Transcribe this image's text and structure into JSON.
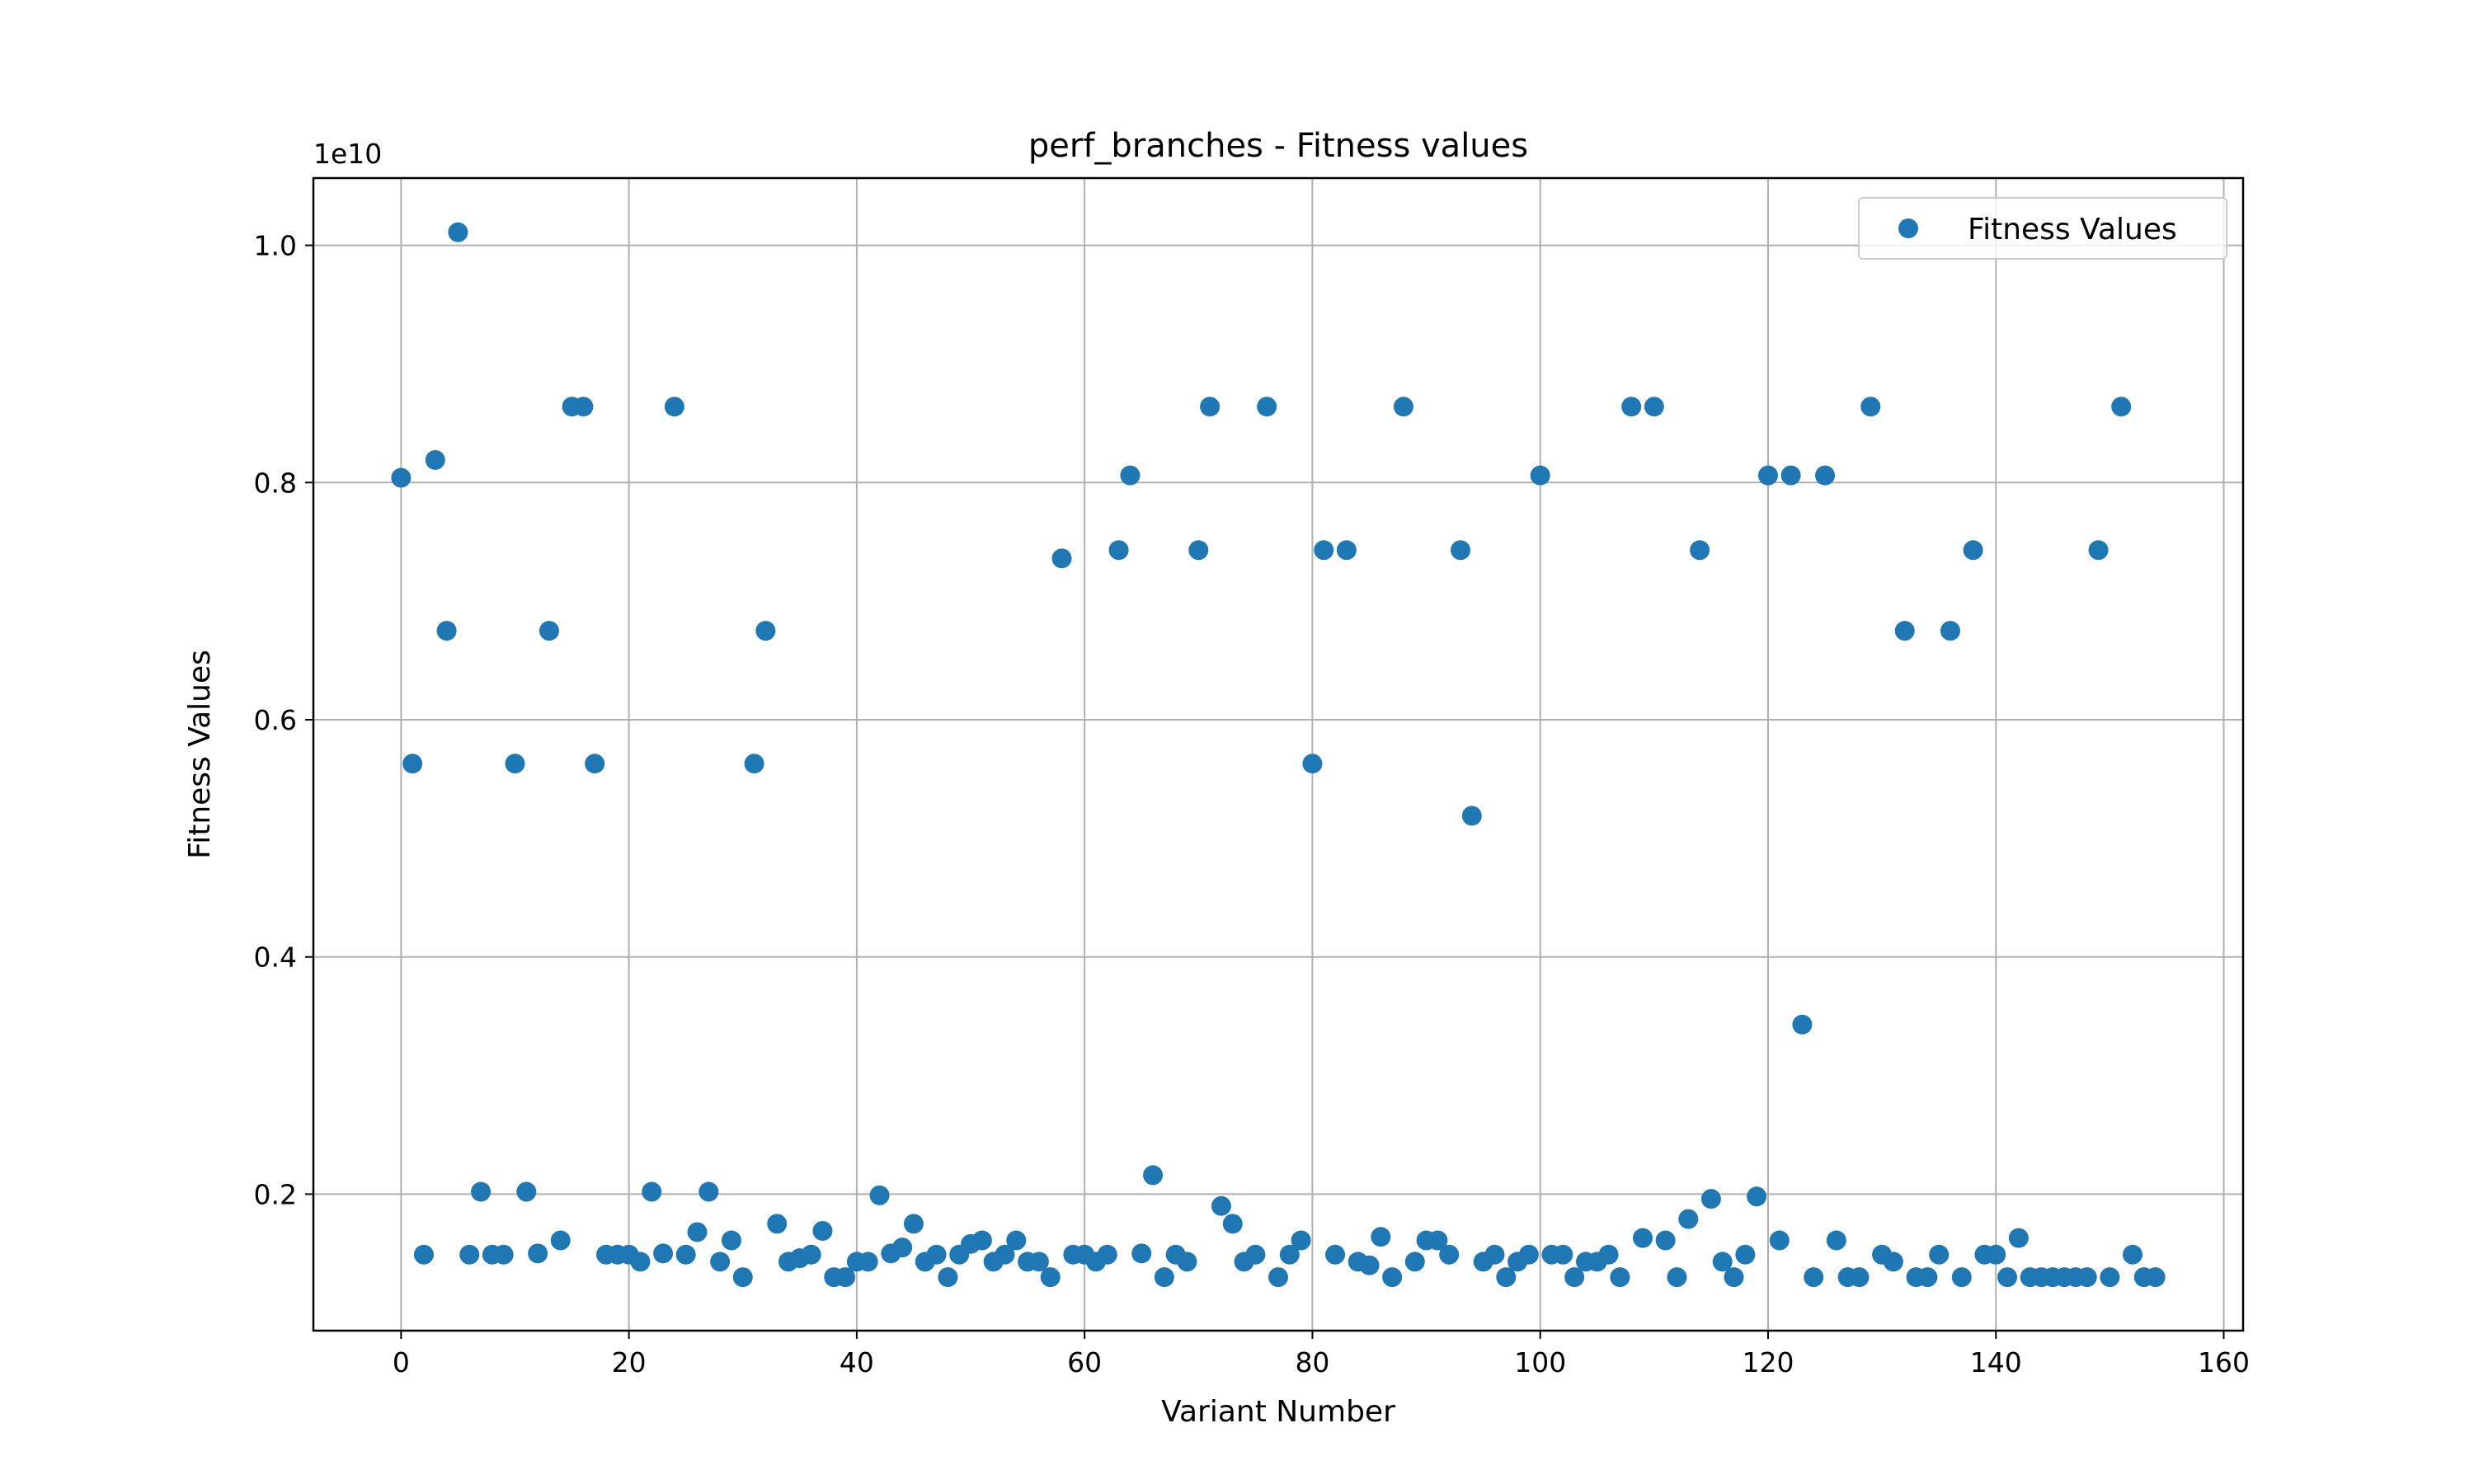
{
  "chart_data": {
    "type": "scatter",
    "title": "perf_branches - Fitness values",
    "xlabel": "Variant Number",
    "ylabel": "Fitness Values",
    "y_offset_text": "1e10",
    "xlim": [
      -7.7,
      161.7
    ],
    "ylim": [
      0.0849,
      1.0567
    ],
    "x_ticks": [
      0,
      20,
      40,
      60,
      80,
      100,
      120,
      140,
      160
    ],
    "x_tick_labels": [
      "0",
      "20",
      "40",
      "60",
      "80",
      "100",
      "120",
      "140",
      "160"
    ],
    "y_ticks": [
      0.2,
      0.4,
      0.6,
      0.8,
      1.0
    ],
    "y_tick_labels": [
      "0.2",
      "0.4",
      "0.6",
      "0.8",
      "1.0"
    ],
    "y_unit_note": "values in units of 1e10",
    "grid": true,
    "legend_position": "top-right",
    "marker_color": "#1f77b4",
    "series": [
      {
        "name": "Fitness Values",
        "x": [
          0,
          1,
          2,
          3,
          4,
          5,
          6,
          7,
          8,
          9,
          10,
          11,
          12,
          13,
          14,
          15,
          16,
          17,
          18,
          19,
          20,
          21,
          22,
          23,
          24,
          25,
          26,
          27,
          28,
          29,
          30,
          31,
          32,
          33,
          34,
          35,
          36,
          37,
          38,
          39,
          40,
          41,
          42,
          43,
          44,
          45,
          46,
          47,
          48,
          49,
          50,
          51,
          52,
          53,
          54,
          55,
          56,
          57,
          58,
          59,
          60,
          61,
          62,
          63,
          64,
          65,
          66,
          67,
          68,
          69,
          70,
          71,
          72,
          73,
          74,
          75,
          76,
          77,
          78,
          79,
          80,
          81,
          82,
          83,
          84,
          85,
          86,
          87,
          88,
          89,
          90,
          91,
          92,
          93,
          94,
          95,
          96,
          97,
          98,
          99,
          100,
          101,
          102,
          103,
          104,
          105,
          106,
          107,
          108,
          109,
          110,
          111,
          112,
          113,
          114,
          115,
          116,
          117,
          118,
          119,
          120,
          121,
          122,
          123,
          124,
          125,
          126,
          127,
          128,
          129,
          130,
          131,
          132,
          133,
          134,
          135,
          136,
          137,
          138,
          139,
          140,
          141,
          142,
          143,
          144,
          145,
          146,
          147,
          148,
          149,
          150,
          151,
          152,
          153,
          154
        ],
        "y": [
          0.804,
          0.563,
          0.149,
          0.819,
          0.675,
          1.011,
          0.149,
          0.202,
          0.149,
          0.149,
          0.563,
          0.202,
          0.15,
          0.675,
          0.161,
          0.864,
          0.864,
          0.563,
          0.149,
          0.149,
          0.149,
          0.143,
          0.202,
          0.15,
          0.864,
          0.149,
          0.168,
          0.202,
          0.143,
          0.161,
          0.13,
          0.563,
          0.675,
          0.175,
          0.143,
          0.146,
          0.149,
          0.169,
          0.13,
          0.13,
          0.143,
          0.143,
          0.199,
          0.15,
          0.155,
          0.175,
          0.143,
          0.149,
          0.13,
          0.149,
          0.158,
          0.161,
          0.143,
          0.149,
          0.161,
          0.143,
          0.143,
          0.13,
          0.736,
          0.149,
          0.149,
          0.143,
          0.149,
          0.743,
          0.806,
          0.15,
          0.216,
          0.13,
          0.149,
          0.143,
          0.743,
          0.864,
          0.19,
          0.175,
          0.143,
          0.149,
          0.864,
          0.13,
          0.149,
          0.161,
          0.563,
          0.743,
          0.149,
          0.743,
          0.143,
          0.14,
          0.164,
          0.13,
          0.864,
          0.143,
          0.161,
          0.161,
          0.149,
          0.743,
          0.519,
          0.143,
          0.149,
          0.13,
          0.143,
          0.149,
          0.806,
          0.149,
          0.149,
          0.13,
          0.143,
          0.143,
          0.149,
          0.13,
          0.864,
          0.163,
          0.864,
          0.161,
          0.13,
          0.179,
          0.743,
          0.196,
          0.143,
          0.13,
          0.149,
          0.198,
          0.806,
          0.161,
          0.806,
          0.343,
          0.13,
          0.806,
          0.161,
          0.13,
          0.13,
          0.864,
          0.149,
          0.143,
          0.675,
          0.13,
          0.13,
          0.149,
          0.675,
          0.13,
          0.743,
          0.149,
          0.149,
          0.13,
          0.163,
          0.13,
          0.13,
          0.13,
          0.13,
          0.13,
          0.13,
          0.743,
          0.13,
          0.864,
          0.149,
          0.13,
          0.13
        ]
      }
    ]
  }
}
